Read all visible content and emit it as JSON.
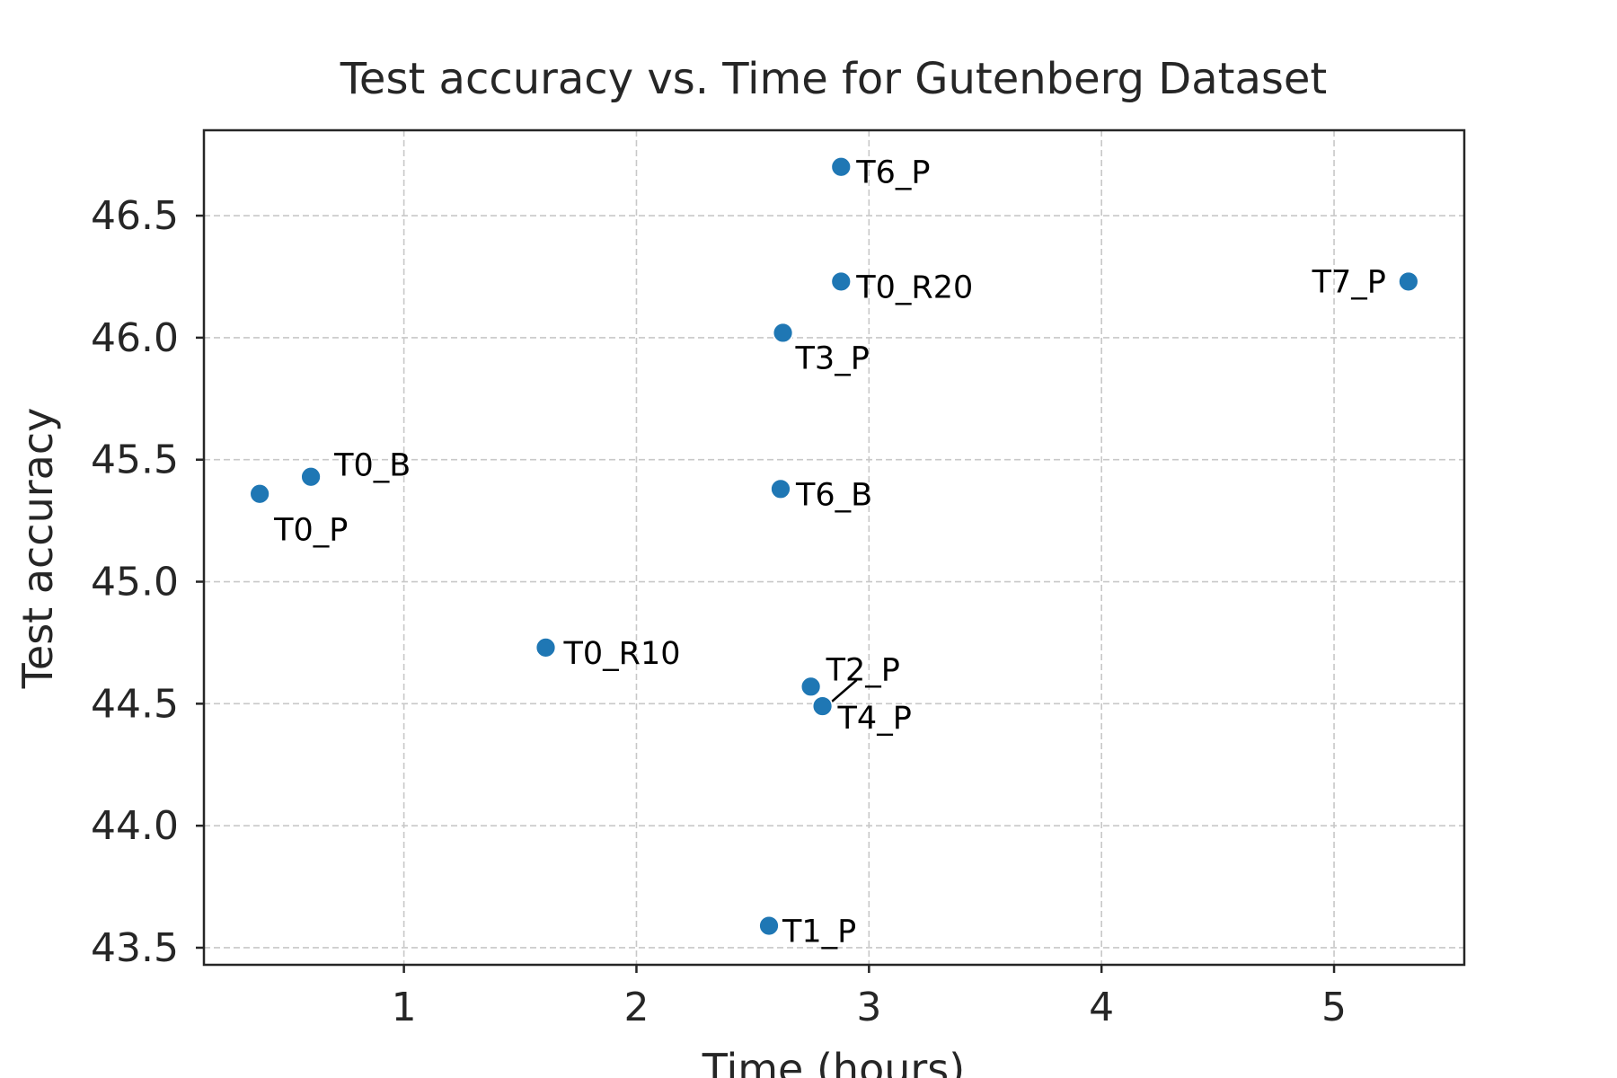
{
  "chart_data": {
    "type": "scatter",
    "title": "Test accuracy vs. Time for Gutenberg Dataset",
    "xlabel": "Time (hours)",
    "ylabel": "Test accuracy",
    "xlim": [
      0.14,
      5.56
    ],
    "ylim": [
      43.43,
      46.85
    ],
    "xticks": [
      1,
      2,
      3,
      4,
      5
    ],
    "xtick_labels": [
      "1",
      "2",
      "3",
      "4",
      "5"
    ],
    "yticks": [
      43.5,
      44.0,
      44.5,
      45.0,
      45.5,
      46.0,
      46.5
    ],
    "ytick_labels": [
      "43.5",
      "44.0",
      "44.5",
      "45.0",
      "45.5",
      "46.0",
      "46.5"
    ],
    "grid": true,
    "color": "#1f77b4",
    "points": [
      {
        "label": "T0_P",
        "x": 0.38,
        "y": 45.36
      },
      {
        "label": "T0_B",
        "x": 0.6,
        "y": 45.43
      },
      {
        "label": "T0_R10",
        "x": 1.61,
        "y": 44.73
      },
      {
        "label": "T1_P",
        "x": 2.57,
        "y": 43.59
      },
      {
        "label": "T6_B",
        "x": 2.62,
        "y": 45.38
      },
      {
        "label": "T3_P",
        "x": 2.63,
        "y": 46.02
      },
      {
        "label": "T2_P",
        "x": 2.75,
        "y": 44.57
      },
      {
        "label": "T4_P",
        "x": 2.8,
        "y": 44.49
      },
      {
        "label": "T6_P",
        "x": 2.88,
        "y": 46.7
      },
      {
        "label": "T0_R20",
        "x": 2.88,
        "y": 46.23
      },
      {
        "label": "T7_P",
        "x": 5.32,
        "y": 46.23
      }
    ]
  }
}
